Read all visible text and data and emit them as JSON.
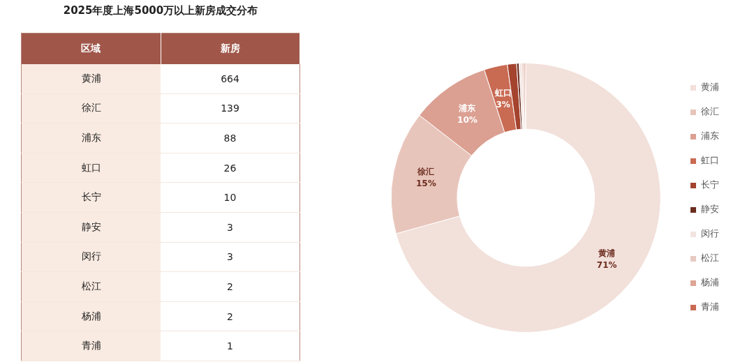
{
  "chart_data": [
    {
      "type": "other",
      "title": "2025年度上海5000万以上新房成交分布",
      "annotations": [
        "区域",
        "新房"
      ],
      "categories": [
        "黄浦",
        "徐汇",
        "浦东",
        "虹口",
        "长宁",
        "静安",
        "闵行",
        "松江",
        "杨浦",
        "青浦"
      ],
      "values": [
        664,
        139,
        88,
        26,
        10,
        3,
        3,
        2,
        2,
        1
      ],
      "data_labels": true
    },
    {
      "type": "donut",
      "categories": [
        "黄浦",
        "徐汇",
        "浦东",
        "虹口",
        "长宁",
        "静安",
        "闵行",
        "松江",
        "杨浦",
        "青浦"
      ],
      "values": [
        70.7,
        14.8,
        9.5,
        2.8,
        1.1,
        0.3,
        0.3,
        0.2,
        0.2,
        0.1
      ],
      "value_labels": [
        "71%",
        "15%",
        "10%",
        "3%",
        null,
        null,
        null,
        null,
        null,
        null
      ],
      "colors": [
        "#f2e0da",
        "#e8c5bb",
        "#dba092",
        "#c96a53",
        "#a4432e",
        "#6b2c1e",
        "#f2e4e0",
        "#e8cac2",
        "#dca595",
        "#c96a53"
      ],
      "legend": "right"
    }
  ]
}
